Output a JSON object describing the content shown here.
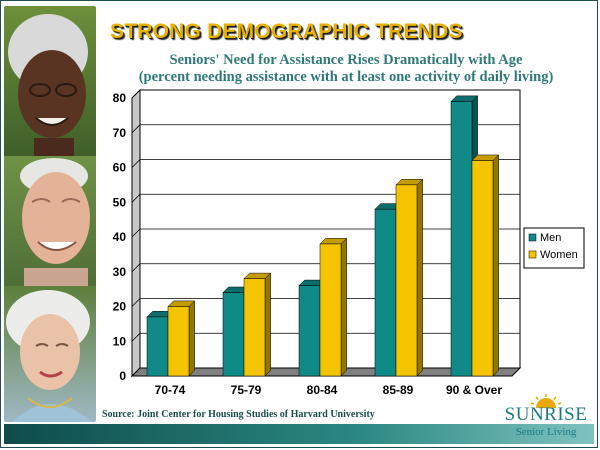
{
  "slide": {
    "title": "STRONG DEMOGRAPHIC TRENDS",
    "subtitle_line1": "Seniors' Need for Assistance Rises Dramatically with Age",
    "subtitle_line2": "(percent needing assistance with at least one activity of daily living)",
    "source": "Source:  Joint Center for Housing Studies of Harvard University"
  },
  "logo": {
    "name": "SUNRISE",
    "tagline": "Senior Living"
  },
  "colors": {
    "men": "#0f8a86",
    "women": "#f4c400",
    "title": "#e7b100",
    "subtitle": "#2f7a79"
  },
  "chart_data": {
    "type": "bar",
    "categories": [
      "70-74",
      "75-79",
      "80-84",
      "85-89",
      "90 & Over"
    ],
    "series": [
      {
        "name": "Men",
        "values": [
          17,
          24,
          26,
          48,
          79
        ]
      },
      {
        "name": "Women",
        "values": [
          20,
          28,
          38,
          55,
          62
        ]
      }
    ],
    "ylim": [
      0,
      80
    ],
    "yticks": [
      0,
      10,
      20,
      30,
      40,
      50,
      60,
      70,
      80
    ],
    "grid": true,
    "legend": "right",
    "title": "Seniors' Need for Assistance Rises Dramatically with Age",
    "xlabel": "",
    "ylabel": ""
  }
}
